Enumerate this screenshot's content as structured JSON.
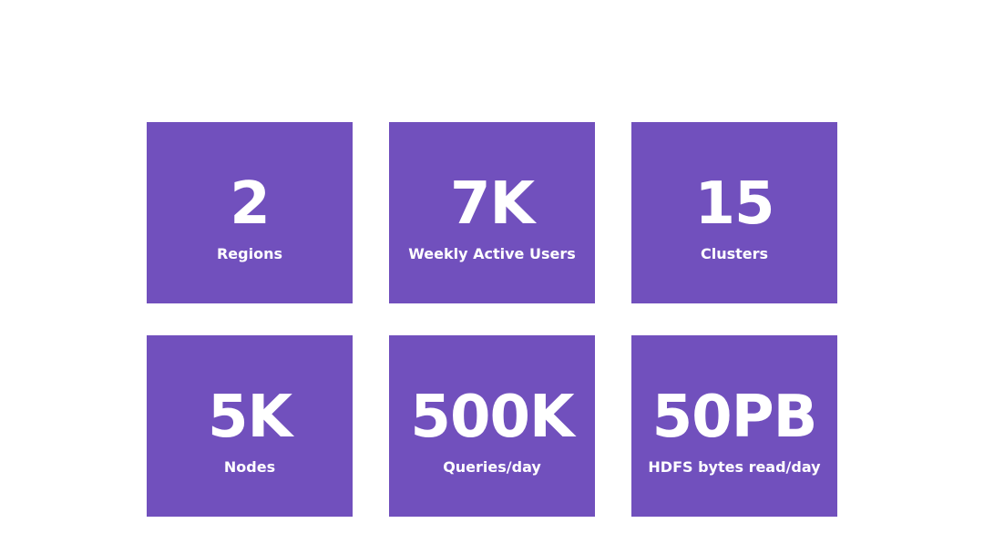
{
  "theme": {
    "tile_color": "#7150bd",
    "text_color": "#ffffff",
    "background": "#ffffff"
  },
  "stats": [
    {
      "value": "2",
      "label": "Regions"
    },
    {
      "value": "7K",
      "label": "Weekly Active Users"
    },
    {
      "value": "15",
      "label": "Clusters"
    },
    {
      "value": "5K",
      "label": "Nodes"
    },
    {
      "value": "500K",
      "label": "Queries/day"
    },
    {
      "value": "50PB",
      "label": "HDFS bytes read/day"
    }
  ]
}
